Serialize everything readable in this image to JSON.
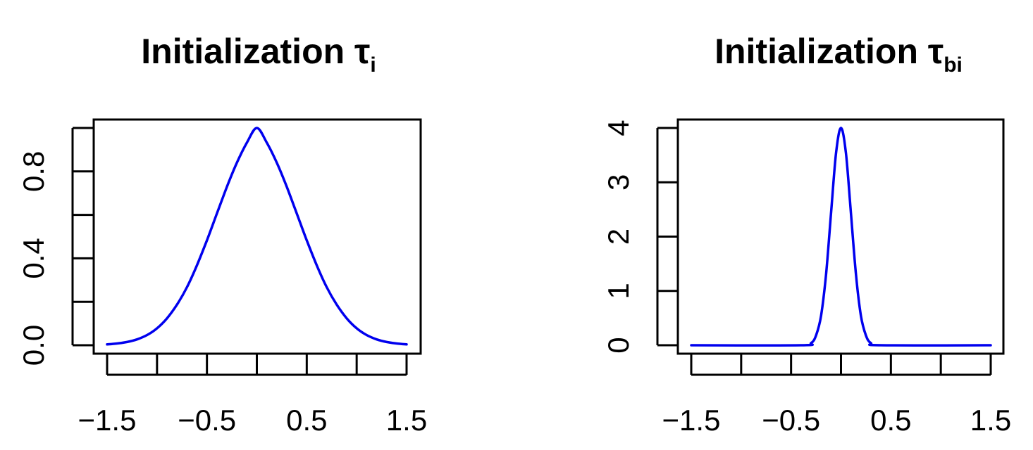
{
  "chart_data": [
    {
      "type": "line",
      "title": "Initialization τ",
      "title_main": "Initialization τ",
      "title_subscript": "i",
      "xlabel": "",
      "ylabel": "",
      "xlim": [
        -1.5,
        1.5
      ],
      "ylim": [
        0,
        1
      ],
      "x_ticks": [
        -1.5,
        -1.0,
        -0.5,
        0.0,
        0.5,
        1.0,
        1.5
      ],
      "x_tick_labels": [
        "−1.5",
        "",
        "−0.5",
        "",
        "0.5",
        "",
        "1.5"
      ],
      "y_ticks": [
        0.0,
        0.2,
        0.4,
        0.6,
        0.8,
        1.0
      ],
      "y_tick_labels": [
        "0.0",
        "",
        "0.4",
        "",
        "0.8",
        ""
      ],
      "grid": false,
      "line_color": "#0000ee",
      "series": [
        {
          "x": [
            -1.5,
            -1.4,
            -1.3,
            -1.2,
            -1.1,
            -1.0,
            -0.9,
            -0.8,
            -0.7,
            -0.6,
            -0.5,
            -0.4,
            -0.3,
            -0.2,
            -0.1,
            0.0,
            0.1,
            0.2,
            0.3,
            0.4,
            0.5,
            0.6,
            0.7,
            0.8,
            0.9,
            1.0,
            1.1,
            1.2,
            1.3,
            1.4,
            1.5
          ],
          "y": [
            0.004,
            0.008,
            0.015,
            0.027,
            0.047,
            0.078,
            0.124,
            0.187,
            0.267,
            0.368,
            0.483,
            0.606,
            0.729,
            0.84,
            0.932,
            1.0,
            0.932,
            0.84,
            0.729,
            0.606,
            0.483,
            0.368,
            0.267,
            0.187,
            0.124,
            0.078,
            0.047,
            0.027,
            0.015,
            0.008,
            0.004
          ]
        }
      ]
    },
    {
      "type": "line",
      "title": "Initialization τ",
      "title_main": "Initialization τ",
      "title_subscript": "bi",
      "xlabel": "",
      "ylabel": "",
      "xlim": [
        -1.5,
        1.5
      ],
      "ylim": [
        0,
        4
      ],
      "x_ticks": [
        -1.5,
        -1.0,
        -0.5,
        0.0,
        0.5,
        1.0,
        1.5
      ],
      "x_tick_labels": [
        "−1.5",
        "",
        "−0.5",
        "",
        "0.5",
        "",
        "1.5"
      ],
      "y_ticks": [
        0,
        1,
        2,
        3,
        4
      ],
      "y_tick_labels": [
        "0",
        "1",
        "2",
        "3",
        "4"
      ],
      "grid": false,
      "line_color": "#0000ee",
      "series": [
        {
          "x": [
            -1.5,
            -0.4,
            -0.3,
            -0.25,
            -0.2,
            -0.15,
            -0.1,
            -0.05,
            0.0,
            0.05,
            0.1,
            0.15,
            0.2,
            0.25,
            0.3,
            0.4,
            1.5
          ],
          "y": [
            0.0,
            0.0,
            0.04,
            0.18,
            0.54,
            1.3,
            2.42,
            3.53,
            4.0,
            3.53,
            2.42,
            1.3,
            0.54,
            0.18,
            0.04,
            0.0,
            0.0
          ]
        }
      ]
    }
  ]
}
